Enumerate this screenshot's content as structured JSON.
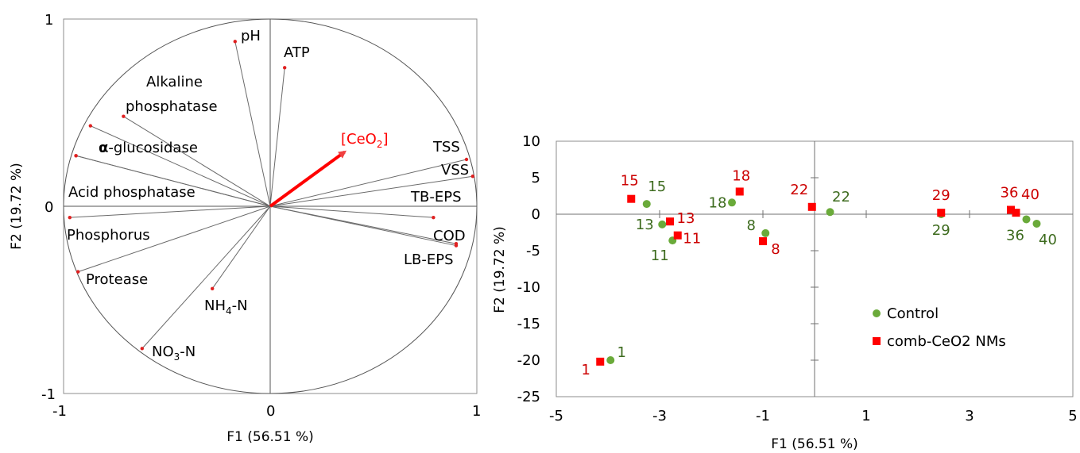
{
  "chart_data": [
    {
      "type": "biplot",
      "xlabel": "F1 (56.51 %)",
      "ylabel": "F2 (19.72 %)",
      "xlim": [
        -1,
        1
      ],
      "ylim": [
        -1,
        1
      ],
      "x_ticks": [
        "-1",
        "0",
        "1"
      ],
      "y_ticks": [
        "1",
        "0",
        "-1"
      ],
      "grid": false,
      "variables": [
        {
          "label": "pH",
          "x": -0.17,
          "y": 0.88
        },
        {
          "label": "ATP",
          "x": 0.07,
          "y": 0.74
        },
        {
          "label": "Alkaline phosphatase",
          "label_line1": "Alkaline",
          "label_line2": "phosphatase",
          "x": -0.71,
          "y": 0.48
        },
        {
          "label": "α-glucosidase",
          "label_bold": "α",
          "label_rest": "-glucosidase",
          "x": -0.87,
          "y": 0.43
        },
        {
          "label": "",
          "x": -0.94,
          "y": 0.27
        },
        {
          "label": "Acid phosphatase",
          "x": -0.94,
          "y": 0.27
        },
        {
          "label": "Phosphorus",
          "x": -0.97,
          "y": -0.06
        },
        {
          "label": "Protease",
          "x": -0.93,
          "y": -0.35
        },
        {
          "label": "NH4-N",
          "label_main": "NH",
          "label_sub": "4",
          "label_tail": "-N",
          "x": -0.28,
          "y": -0.44
        },
        {
          "label": "NO3-N",
          "label_main": "NO",
          "label_sub": "3",
          "label_tail": "-N",
          "x": -0.62,
          "y": -0.76
        },
        {
          "label": "TSS",
          "x": 0.95,
          "y": 0.25
        },
        {
          "label": "VSS",
          "x": 0.98,
          "y": 0.16
        },
        {
          "label": "TB-EPS",
          "x": 0.79,
          "y": -0.06
        },
        {
          "label": "COD",
          "x": 0.9,
          "y": -0.2
        },
        {
          "label": "LB-EPS",
          "x": 0.9,
          "y": -0.21
        }
      ],
      "supplementary_arrow": {
        "label": "[CeO2]",
        "label_main": "[CeO",
        "label_sub": "2",
        "label_tail": "]",
        "x": 0.36,
        "y": 0.29,
        "color": "#ff0000"
      }
    },
    {
      "type": "scatter",
      "xlabel": "F1 (56.51 %)",
      "ylabel": "F2 (19.72 %)",
      "xlim": [
        -5,
        5
      ],
      "ylim": [
        -25,
        10
      ],
      "x_ticks": [
        -5,
        -3,
        -1,
        1,
        3,
        5
      ],
      "y_ticks": [
        10,
        5,
        0,
        -5,
        -10,
        -15,
        -20,
        -25
      ],
      "grid": false,
      "legend": "bottom-right inside",
      "series": [
        {
          "name": "Control",
          "color": "#6aaa3a",
          "marker": "circle",
          "points": [
            {
              "label": "1",
              "x": -3.95,
              "y": -20.0
            },
            {
              "label": "8",
              "x": -0.95,
              "y": -2.6
            },
            {
              "label": "11",
              "x": -2.75,
              "y": -3.6
            },
            {
              "label": "13",
              "x": -2.95,
              "y": -1.4
            },
            {
              "label": "15",
              "x": -3.25,
              "y": 1.4
            },
            {
              "label": "18",
              "x": -1.6,
              "y": 1.6
            },
            {
              "label": "22",
              "x": 0.3,
              "y": 0.3
            },
            {
              "label": "29",
              "x": 2.45,
              "y": 0.0
            },
            {
              "label": "36",
              "x": 4.1,
              "y": -0.7
            },
            {
              "label": "40",
              "x": 4.3,
              "y": -1.3
            }
          ]
        },
        {
          "name": "comb-CeO2 NMs",
          "color": "#ff0000",
          "marker": "square",
          "points": [
            {
              "label": "1",
              "x": -4.15,
              "y": -20.2
            },
            {
              "label": "8",
              "x": -1.0,
              "y": -3.7
            },
            {
              "label": "11",
              "x": -2.65,
              "y": -2.9
            },
            {
              "label": "13",
              "x": -2.8,
              "y": -1.0
            },
            {
              "label": "15",
              "x": -3.55,
              "y": 2.1
            },
            {
              "label": "18",
              "x": -1.45,
              "y": 3.1
            },
            {
              "label": "22",
              "x": -0.05,
              "y": 1.0
            },
            {
              "label": "29",
              "x": 2.45,
              "y": 0.2
            },
            {
              "label": "36",
              "x": 3.8,
              "y": 0.6
            },
            {
              "label": "40",
              "x": 3.9,
              "y": 0.2
            }
          ]
        }
      ]
    }
  ]
}
